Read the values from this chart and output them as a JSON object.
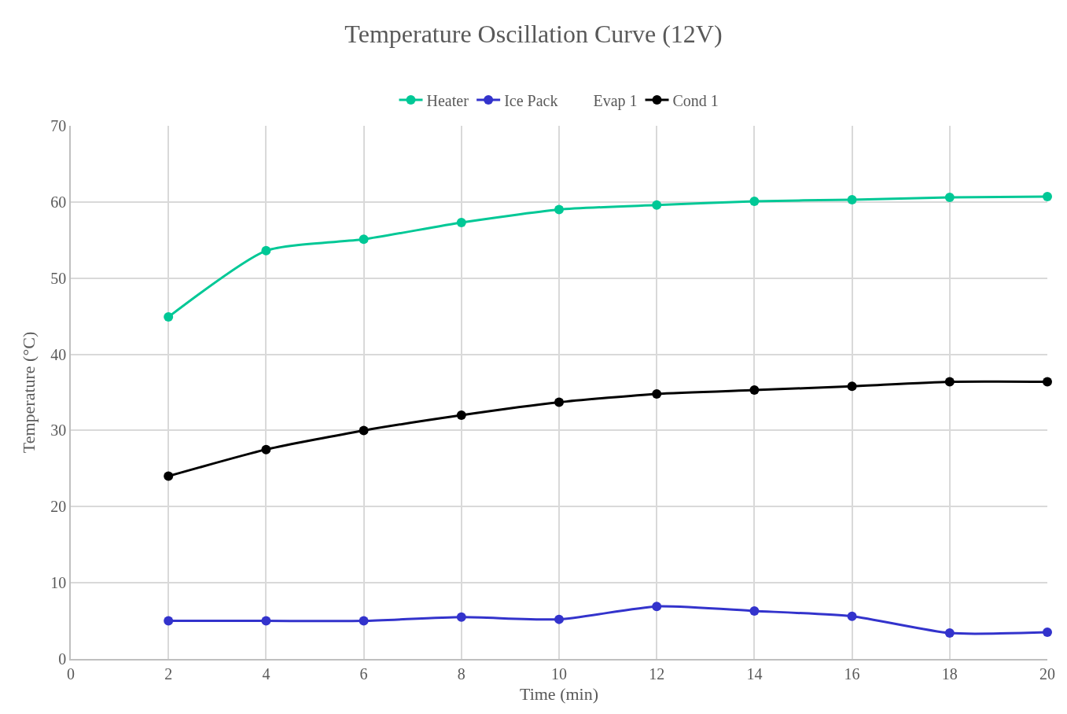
{
  "chart_data": {
    "type": "line",
    "title": "Temperature Oscillation Curve (12V)",
    "xlabel": "Time (min)",
    "ylabel": "Temperature (°C)",
    "x": [
      2,
      4,
      6,
      8,
      10,
      12,
      14,
      16,
      18,
      20
    ],
    "series": [
      {
        "name": "Heater",
        "color": "#00c896",
        "values": [
          44.9,
          53.6,
          55.1,
          57.3,
          59.0,
          59.6,
          60.1,
          60.3,
          60.6,
          60.7
        ]
      },
      {
        "name": "Ice Pack",
        "color": "#3333cc",
        "values": [
          5.0,
          5.0,
          5.0,
          5.5,
          5.2,
          6.9,
          6.3,
          5.6,
          3.4,
          3.5
        ]
      },
      {
        "name": "Evap 1",
        "values": [
          null,
          null,
          null,
          null,
          null,
          null,
          null,
          null,
          null,
          null
        ]
      },
      {
        "name": "Cond 1",
        "color": "#000000",
        "values": [
          24.0,
          27.5,
          30.0,
          32.0,
          33.7,
          34.8,
          35.3,
          35.8,
          36.4,
          36.4
        ]
      }
    ],
    "xlim": [
      0,
      20
    ],
    "xticks": [
      0,
      2,
      4,
      6,
      8,
      10,
      12,
      14,
      16,
      18,
      20
    ],
    "ylim": [
      0,
      70
    ],
    "yticks": [
      0,
      10,
      20,
      30,
      40,
      50,
      60,
      70
    ],
    "grid": true,
    "legend": "top",
    "marker": "circle",
    "line_style": "solid"
  }
}
